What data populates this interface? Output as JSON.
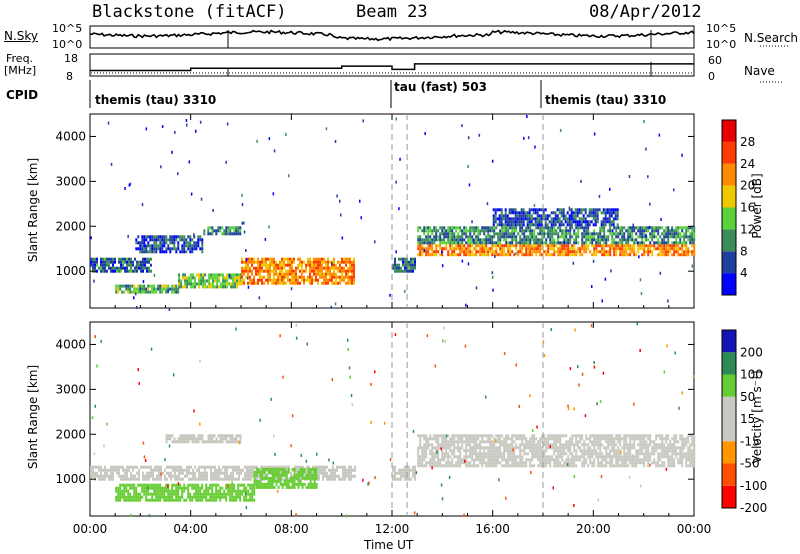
{
  "header": {
    "station": "Blackstone (fitACF)",
    "beam": "Beam 23",
    "date": "08/Apr/2012"
  },
  "strip_labels": {
    "nsky": "N.Sky",
    "nsky_top": "10^5",
    "nsky_bottom": "10^0",
    "nsearch": "N.Search",
    "nsearch_top": "10^5",
    "nsearch_bottom": "10^0",
    "freq": "Freq.",
    "freq_unit": "[MHz]",
    "freq_top": "18",
    "freq_bottom": "8",
    "nave": "Nave",
    "nave_top": "60",
    "nave_bottom": "0",
    "cpid": "CPID"
  },
  "cpid_segments": [
    {
      "label": "themis (tau) 3310",
      "start_hour": 0
    },
    {
      "label": "tau (fast) 503",
      "start_hour": 12
    },
    {
      "label": "themis (tau) 3310",
      "start_hour": 18
    }
  ],
  "x_axis": {
    "label": "Time UT",
    "ticks": [
      "00:00",
      "04:00",
      "08:00",
      "12:00",
      "16:00",
      "20:00",
      "00:00"
    ],
    "range_hours": [
      0,
      24
    ]
  },
  "panels": {
    "power": {
      "ylabel": "Slant Range [km]",
      "yticks": [
        "1000",
        "2000",
        "3000",
        "4000"
      ],
      "colorbar_label": "Power [dB]",
      "colorbar_ticks": [
        "4",
        "8",
        "12",
        "16",
        "20",
        "24",
        "28"
      ]
    },
    "velocity": {
      "ylabel": "Slant Range [km]",
      "yticks": [
        "1000",
        "2000",
        "3000",
        "4000"
      ],
      "colorbar_label": "Velocity [m s⁻¹]",
      "colorbar_ticks": [
        "200",
        "100",
        "50",
        "15",
        "-15",
        "-50",
        "-100",
        "-200"
      ]
    }
  },
  "colors": {
    "power_scale": [
      "#0000ff",
      "#2040a0",
      "#3c8c5a",
      "#5ad23c",
      "#f0c800",
      "#ff8c00",
      "#ff3c00",
      "#e60000"
    ],
    "velocity_scale": [
      "#ff0000",
      "#ff5000",
      "#ff9600",
      "#c8c8c0",
      "#c8c8c0",
      "#66cc33",
      "#2e8b57",
      "#1414b4"
    ]
  },
  "chart_data": {
    "type": "heatmap",
    "x_range_hours": [
      0,
      24
    ],
    "y_range_km": [
      180,
      4500
    ],
    "frequency_mhz_steps": [
      {
        "start_hour": 0,
        "value": 10.5
      },
      {
        "start_hour": 4.0,
        "value": 11.5
      },
      {
        "start_hour": 10.0,
        "value": 12.5
      },
      {
        "start_hour": 12.0,
        "value": 11.0
      },
      {
        "start_hour": 12.9,
        "value": 13.5
      }
    ],
    "power_echo_regions": [
      {
        "start_hour": 0.0,
        "end_hour": 2.4,
        "range_km": [
          1000,
          1300
        ],
        "power_db": 8
      },
      {
        "start_hour": 1.8,
        "end_hour": 4.5,
        "range_km": [
          1400,
          1800
        ],
        "power_db": 6
      },
      {
        "start_hour": 1.0,
        "end_hour": 3.5,
        "range_km": [
          520,
          700
        ],
        "power_db": 12
      },
      {
        "start_hour": 3.5,
        "end_hour": 6.0,
        "range_km": [
          650,
          950
        ],
        "power_db": 14
      },
      {
        "start_hour": 6.0,
        "end_hour": 10.5,
        "range_km": [
          700,
          1300
        ],
        "power_db": 22
      },
      {
        "start_hour": 4.5,
        "end_hour": 6.0,
        "range_km": [
          1800,
          2000
        ],
        "power_db": 10
      },
      {
        "start_hour": 12.0,
        "end_hour": 12.9,
        "range_km": [
          1000,
          1300
        ],
        "power_db": 8
      },
      {
        "start_hour": 13.0,
        "end_hour": 24.0,
        "range_km": [
          1350,
          1600
        ],
        "power_db": 22
      },
      {
        "start_hour": 13.0,
        "end_hour": 24.0,
        "range_km": [
          1600,
          2000
        ],
        "power_db": 10
      },
      {
        "start_hour": 16.0,
        "end_hour": 21.0,
        "range_km": [
          2000,
          2400
        ],
        "power_db": 6
      }
    ],
    "velocity_echo_regions": [
      {
        "start_hour": 0.0,
        "end_hour": 10.5,
        "range_km": [
          1000,
          1300
        ],
        "velocity_ms": 0
      },
      {
        "start_hour": 1.0,
        "end_hour": 6.5,
        "range_km": [
          500,
          900
        ],
        "velocity_ms": 40
      },
      {
        "start_hour": 6.5,
        "end_hour": 9.0,
        "range_km": [
          800,
          1250
        ],
        "velocity_ms": 30
      },
      {
        "start_hour": 3.0,
        "end_hour": 6.0,
        "range_km": [
          1800,
          2000
        ],
        "velocity_ms": 0
      },
      {
        "start_hour": 12.0,
        "end_hour": 12.9,
        "range_km": [
          1000,
          1300
        ],
        "velocity_ms": 0
      },
      {
        "start_hour": 13.0,
        "end_hour": 24.0,
        "range_km": [
          1300,
          2000
        ],
        "velocity_ms": 0
      }
    ]
  }
}
